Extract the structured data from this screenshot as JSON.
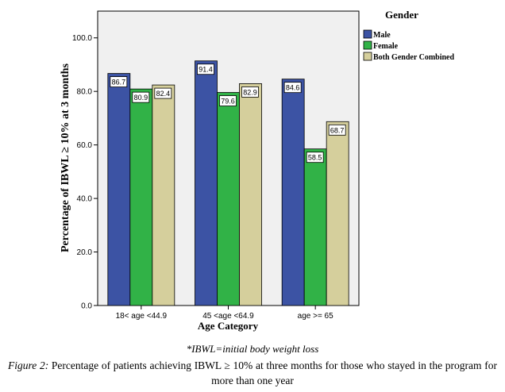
{
  "chart_data": {
    "type": "bar",
    "title": "",
    "xlabel": "Age Category",
    "ylabel": "Percentage of IBWL ≥ 10% at 3 months",
    "categories": [
      "18< age <44.9",
      "45 <age <64.9",
      "age >= 65"
    ],
    "series": [
      {
        "name": "Male",
        "values": [
          86.7,
          91.4,
          84.6
        ],
        "color": "#3c53a4"
      },
      {
        "name": "Female",
        "values": [
          80.9,
          79.6,
          58.5
        ],
        "color": "#31b247"
      },
      {
        "name": "Both Gender Combined",
        "values": [
          82.4,
          82.9,
          68.7
        ],
        "color": "#d5cf9c"
      }
    ],
    "data_labels": [
      [
        "86.7",
        "91.4",
        "84.6"
      ],
      [
        "80.9",
        "79.6",
        "58.5"
      ],
      [
        "82.4",
        "82.9",
        "68.7"
      ]
    ],
    "ylim": [
      0,
      110
    ],
    "yticks": [
      0,
      20,
      40,
      60,
      80,
      100
    ],
    "ytick_labels": [
      "0.0",
      "20.0",
      "40.0",
      "60.0",
      "80.0",
      "100.0"
    ],
    "legend_title": "Gender",
    "legend_position": "top-right, outside plot",
    "grid": false,
    "plot_background": "#f0f0f0"
  },
  "footnote": "*IBWL=initial body weight loss",
  "caption": {
    "label": "Figure 2:",
    "text": "Percentage of patients achieving IBWL ≥ 10% at three months for those who stayed in the program for more than one year"
  }
}
